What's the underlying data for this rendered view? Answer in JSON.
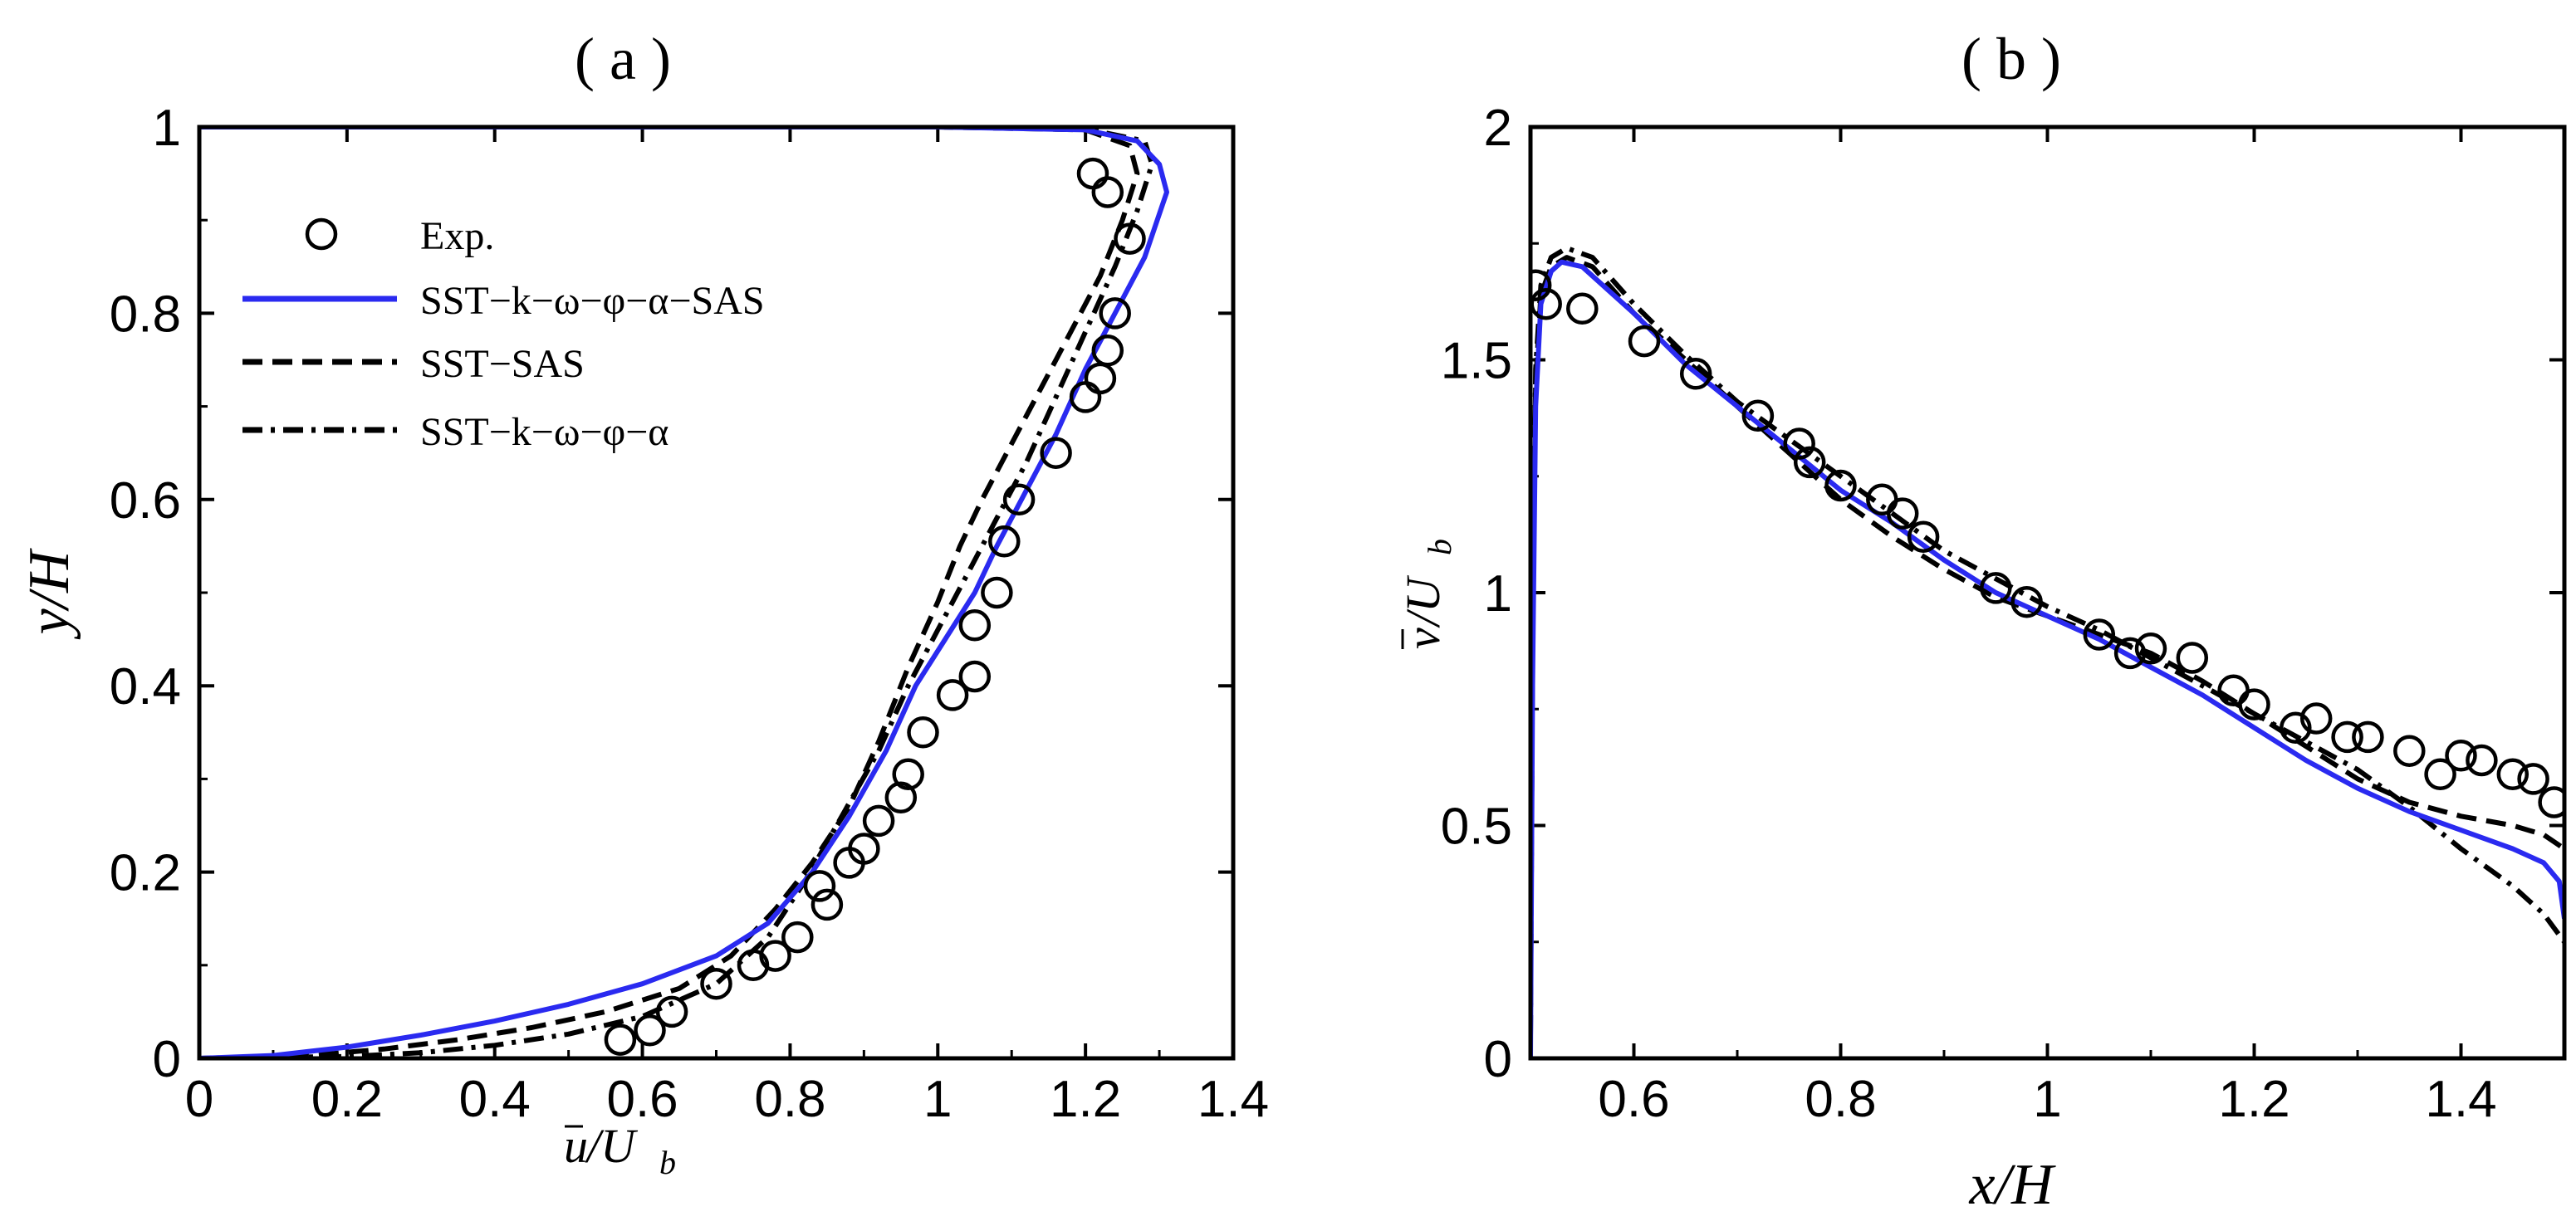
{
  "chart_data": [
    {
      "type": "line",
      "panel_title": "( a )",
      "xlabel": "u/Ub",
      "xlabel_main": "u",
      "xlabel_denom": "/U",
      "xlabel_sub": "b",
      "ylabel": "y/H",
      "xlim": [
        0,
        1.4
      ],
      "ylim": [
        0,
        1
      ],
      "xticks": [
        0,
        0.2,
        0.4,
        0.6,
        0.8,
        1,
        1.2,
        1.4
      ],
      "xtick_labels": [
        "0",
        "0.2",
        "0.4",
        "0.6",
        "0.8",
        "1",
        "1.2",
        "1.4"
      ],
      "yticks": [
        0,
        0.2,
        0.4,
        0.6,
        0.8,
        1
      ],
      "ytick_labels": [
        "0",
        "0.2",
        "0.4",
        "0.6",
        "0.8",
        "1"
      ],
      "legend_position": "top-left",
      "legend": [
        {
          "label": "Exp.",
          "style": "circle"
        },
        {
          "label": "SST−k−ω−φ−α−SAS",
          "style": "solid-blue"
        },
        {
          "label": "SST−SAS",
          "style": "dashed"
        },
        {
          "label": "SST−k−ω−φ−α",
          "style": "dashdot"
        }
      ],
      "series": [
        {
          "name": "Exp.",
          "style": "circle",
          "points": [
            [
              0.57,
              0.02
            ],
            [
              0.61,
              0.03
            ],
            [
              0.64,
              0.05
            ],
            [
              0.7,
              0.08
            ],
            [
              0.75,
              0.1
            ],
            [
              0.78,
              0.11
            ],
            [
              0.81,
              0.13
            ],
            [
              0.85,
              0.165
            ],
            [
              0.84,
              0.185
            ],
            [
              0.88,
              0.21
            ],
            [
              0.9,
              0.225
            ],
            [
              0.92,
              0.255
            ],
            [
              0.95,
              0.28
            ],
            [
              0.96,
              0.305
            ],
            [
              0.98,
              0.35
            ],
            [
              1.02,
              0.39
            ],
            [
              1.05,
              0.41
            ],
            [
              1.05,
              0.465
            ],
            [
              1.08,
              0.5
            ],
            [
              1.09,
              0.555
            ],
            [
              1.11,
              0.6
            ],
            [
              1.16,
              0.65
            ],
            [
              1.2,
              0.71
            ],
            [
              1.22,
              0.73
            ],
            [
              1.23,
              0.76
            ],
            [
              1.24,
              0.8
            ],
            [
              1.26,
              0.88
            ],
            [
              1.21,
              0.95
            ],
            [
              1.23,
              0.93
            ]
          ]
        },
        {
          "name": "SST−k−ω−φ−α−SAS",
          "style": "solid-blue",
          "points": [
            [
              0,
              0
            ],
            [
              0.1,
              0.003
            ],
            [
              0.2,
              0.012
            ],
            [
              0.3,
              0.025
            ],
            [
              0.4,
              0.04
            ],
            [
              0.5,
              0.058
            ],
            [
              0.6,
              0.08
            ],
            [
              0.7,
              0.11
            ],
            [
              0.77,
              0.145
            ],
            [
              0.83,
              0.2
            ],
            [
              0.88,
              0.26
            ],
            [
              0.93,
              0.33
            ],
            [
              0.97,
              0.4
            ],
            [
              1.01,
              0.45
            ],
            [
              1.05,
              0.5
            ],
            [
              1.08,
              0.55
            ],
            [
              1.12,
              0.61
            ],
            [
              1.16,
              0.67
            ],
            [
              1.2,
              0.74
            ],
            [
              1.24,
              0.8
            ],
            [
              1.28,
              0.86
            ],
            [
              1.31,
              0.93
            ],
            [
              1.3,
              0.96
            ],
            [
              1.27,
              0.985
            ],
            [
              1.2,
              0.997
            ],
            [
              1.0,
              1.0
            ],
            [
              0,
              1.0
            ]
          ]
        },
        {
          "name": "SST−SAS",
          "style": "dashed",
          "points": [
            [
              0,
              0
            ],
            [
              0.15,
              0.003
            ],
            [
              0.25,
              0.01
            ],
            [
              0.35,
              0.02
            ],
            [
              0.45,
              0.033
            ],
            [
              0.55,
              0.05
            ],
            [
              0.65,
              0.075
            ],
            [
              0.72,
              0.11
            ],
            [
              0.78,
              0.16
            ],
            [
              0.83,
              0.21
            ],
            [
              0.88,
              0.27
            ],
            [
              0.92,
              0.34
            ],
            [
              0.96,
              0.42
            ],
            [
              1.0,
              0.49
            ],
            [
              1.03,
              0.55
            ],
            [
              1.06,
              0.6
            ],
            [
              1.1,
              0.66
            ],
            [
              1.14,
              0.72
            ],
            [
              1.18,
              0.78
            ],
            [
              1.22,
              0.84
            ],
            [
              1.25,
              0.9
            ],
            [
              1.27,
              0.95
            ],
            [
              1.26,
              0.98
            ],
            [
              1.2,
              0.997
            ],
            [
              1.0,
              1.0
            ],
            [
              0,
              1.0
            ]
          ]
        },
        {
          "name": "SST−k−ω−φ−α",
          "style": "dashdot",
          "points": [
            [
              0,
              0
            ],
            [
              0.2,
              0.002
            ],
            [
              0.3,
              0.006
            ],
            [
              0.4,
              0.014
            ],
            [
              0.5,
              0.026
            ],
            [
              0.6,
              0.045
            ],
            [
              0.7,
              0.08
            ],
            [
              0.77,
              0.13
            ],
            [
              0.82,
              0.19
            ],
            [
              0.87,
              0.26
            ],
            [
              0.92,
              0.33
            ],
            [
              0.96,
              0.4
            ],
            [
              1.0,
              0.46
            ],
            [
              1.04,
              0.52
            ],
            [
              1.08,
              0.58
            ],
            [
              1.12,
              0.64
            ],
            [
              1.16,
              0.71
            ],
            [
              1.2,
              0.78
            ],
            [
              1.24,
              0.85
            ],
            [
              1.27,
              0.91
            ],
            [
              1.29,
              0.96
            ],
            [
              1.28,
              0.985
            ],
            [
              1.2,
              0.998
            ],
            [
              1.0,
              1.0
            ],
            [
              0,
              1.0
            ]
          ]
        }
      ]
    },
    {
      "type": "line",
      "panel_title": "( b )",
      "xlabel": "x/H",
      "ylabel": "v/Ub",
      "ylabel_main": "v",
      "ylabel_denom": "/U",
      "ylabel_sub": "b",
      "xlim": [
        0.5,
        1.5
      ],
      "ylim": [
        0,
        2
      ],
      "xticks": [
        0.6,
        0.8,
        1,
        1.2,
        1.4
      ],
      "xtick_labels": [
        "0.6",
        "0.8",
        "1",
        "1.2",
        "1.4"
      ],
      "yticks": [
        0,
        0.5,
        1,
        1.5,
        2
      ],
      "ytick_labels": [
        "0",
        "0.5",
        "1",
        "1.5",
        "2"
      ],
      "series": [
        {
          "name": "Exp.",
          "style": "circle",
          "points": [
            [
              0.505,
              1.66
            ],
            [
              0.515,
              1.62
            ],
            [
              0.55,
              1.61
            ],
            [
              0.61,
              1.54
            ],
            [
              0.66,
              1.47
            ],
            [
              0.72,
              1.38
            ],
            [
              0.76,
              1.32
            ],
            [
              0.77,
              1.28
            ],
            [
              0.8,
              1.23
            ],
            [
              0.84,
              1.2
            ],
            [
              0.86,
              1.17
            ],
            [
              0.88,
              1.12
            ],
            [
              0.95,
              1.01
            ],
            [
              0.98,
              0.98
            ],
            [
              1.05,
              0.91
            ],
            [
              1.08,
              0.87
            ],
            [
              1.1,
              0.88
            ],
            [
              1.14,
              0.86
            ],
            [
              1.18,
              0.79
            ],
            [
              1.2,
              0.76
            ],
            [
              1.24,
              0.71
            ],
            [
              1.26,
              0.73
            ],
            [
              1.29,
              0.69
            ],
            [
              1.31,
              0.69
            ],
            [
              1.35,
              0.66
            ],
            [
              1.38,
              0.61
            ],
            [
              1.4,
              0.65
            ],
            [
              1.42,
              0.64
            ],
            [
              1.45,
              0.61
            ],
            [
              1.47,
              0.6
            ],
            [
              1.49,
              0.55
            ]
          ]
        },
        {
          "name": "SST−k−ω−φ−α−SAS",
          "style": "solid-blue",
          "points": [
            [
              0.5,
              0.0
            ],
            [
              0.502,
              0.8
            ],
            [
              0.505,
              1.4
            ],
            [
              0.51,
              1.62
            ],
            [
              0.52,
              1.69
            ],
            [
              0.53,
              1.71
            ],
            [
              0.55,
              1.7
            ],
            [
              0.6,
              1.6
            ],
            [
              0.65,
              1.49
            ],
            [
              0.7,
              1.4
            ],
            [
              0.75,
              1.31
            ],
            [
              0.8,
              1.22
            ],
            [
              0.85,
              1.15
            ],
            [
              0.9,
              1.07
            ],
            [
              0.95,
              1.0
            ],
            [
              1.0,
              0.95
            ],
            [
              1.05,
              0.9
            ],
            [
              1.1,
              0.84
            ],
            [
              1.15,
              0.78
            ],
            [
              1.2,
              0.71
            ],
            [
              1.25,
              0.64
            ],
            [
              1.3,
              0.58
            ],
            [
              1.35,
              0.53
            ],
            [
              1.4,
              0.49
            ],
            [
              1.45,
              0.45
            ],
            [
              1.48,
              0.42
            ],
            [
              1.495,
              0.38
            ],
            [
              1.5,
              0.3
            ]
          ]
        },
        {
          "name": "SST−SAS",
          "style": "dashed",
          "points": [
            [
              0.5,
              0.05
            ],
            [
              0.502,
              0.9
            ],
            [
              0.505,
              1.45
            ],
            [
              0.51,
              1.64
            ],
            [
              0.52,
              1.7
            ],
            [
              0.535,
              1.72
            ],
            [
              0.56,
              1.7
            ],
            [
              0.6,
              1.6
            ],
            [
              0.65,
              1.5
            ],
            [
              0.7,
              1.4
            ],
            [
              0.75,
              1.3
            ],
            [
              0.8,
              1.2
            ],
            [
              0.85,
              1.12
            ],
            [
              0.9,
              1.05
            ],
            [
              0.95,
              0.99
            ],
            [
              1.0,
              0.95
            ],
            [
              1.05,
              0.91
            ],
            [
              1.1,
              0.87
            ],
            [
              1.15,
              0.81
            ],
            [
              1.2,
              0.74
            ],
            [
              1.25,
              0.67
            ],
            [
              1.3,
              0.6
            ],
            [
              1.35,
              0.55
            ],
            [
              1.4,
              0.52
            ],
            [
              1.45,
              0.5
            ],
            [
              1.48,
              0.48
            ],
            [
              1.5,
              0.45
            ]
          ]
        },
        {
          "name": "SST−k−ω−φ−α",
          "style": "dashdot",
          "points": [
            [
              0.5,
              0.05
            ],
            [
              0.502,
              0.9
            ],
            [
              0.505,
              1.48
            ],
            [
              0.51,
              1.66
            ],
            [
              0.52,
              1.72
            ],
            [
              0.535,
              1.74
            ],
            [
              0.56,
              1.72
            ],
            [
              0.6,
              1.62
            ],
            [
              0.65,
              1.51
            ],
            [
              0.7,
              1.41
            ],
            [
              0.75,
              1.33
            ],
            [
              0.8,
              1.25
            ],
            [
              0.85,
              1.17
            ],
            [
              0.9,
              1.09
            ],
            [
              0.95,
              1.03
            ],
            [
              1.0,
              0.97
            ],
            [
              1.05,
              0.92
            ],
            [
              1.1,
              0.86
            ],
            [
              1.15,
              0.8
            ],
            [
              1.2,
              0.74
            ],
            [
              1.25,
              0.68
            ],
            [
              1.3,
              0.62
            ],
            [
              1.35,
              0.54
            ],
            [
              1.4,
              0.45
            ],
            [
              1.45,
              0.37
            ],
            [
              1.48,
              0.31
            ],
            [
              1.5,
              0.25
            ]
          ]
        }
      ]
    }
  ]
}
